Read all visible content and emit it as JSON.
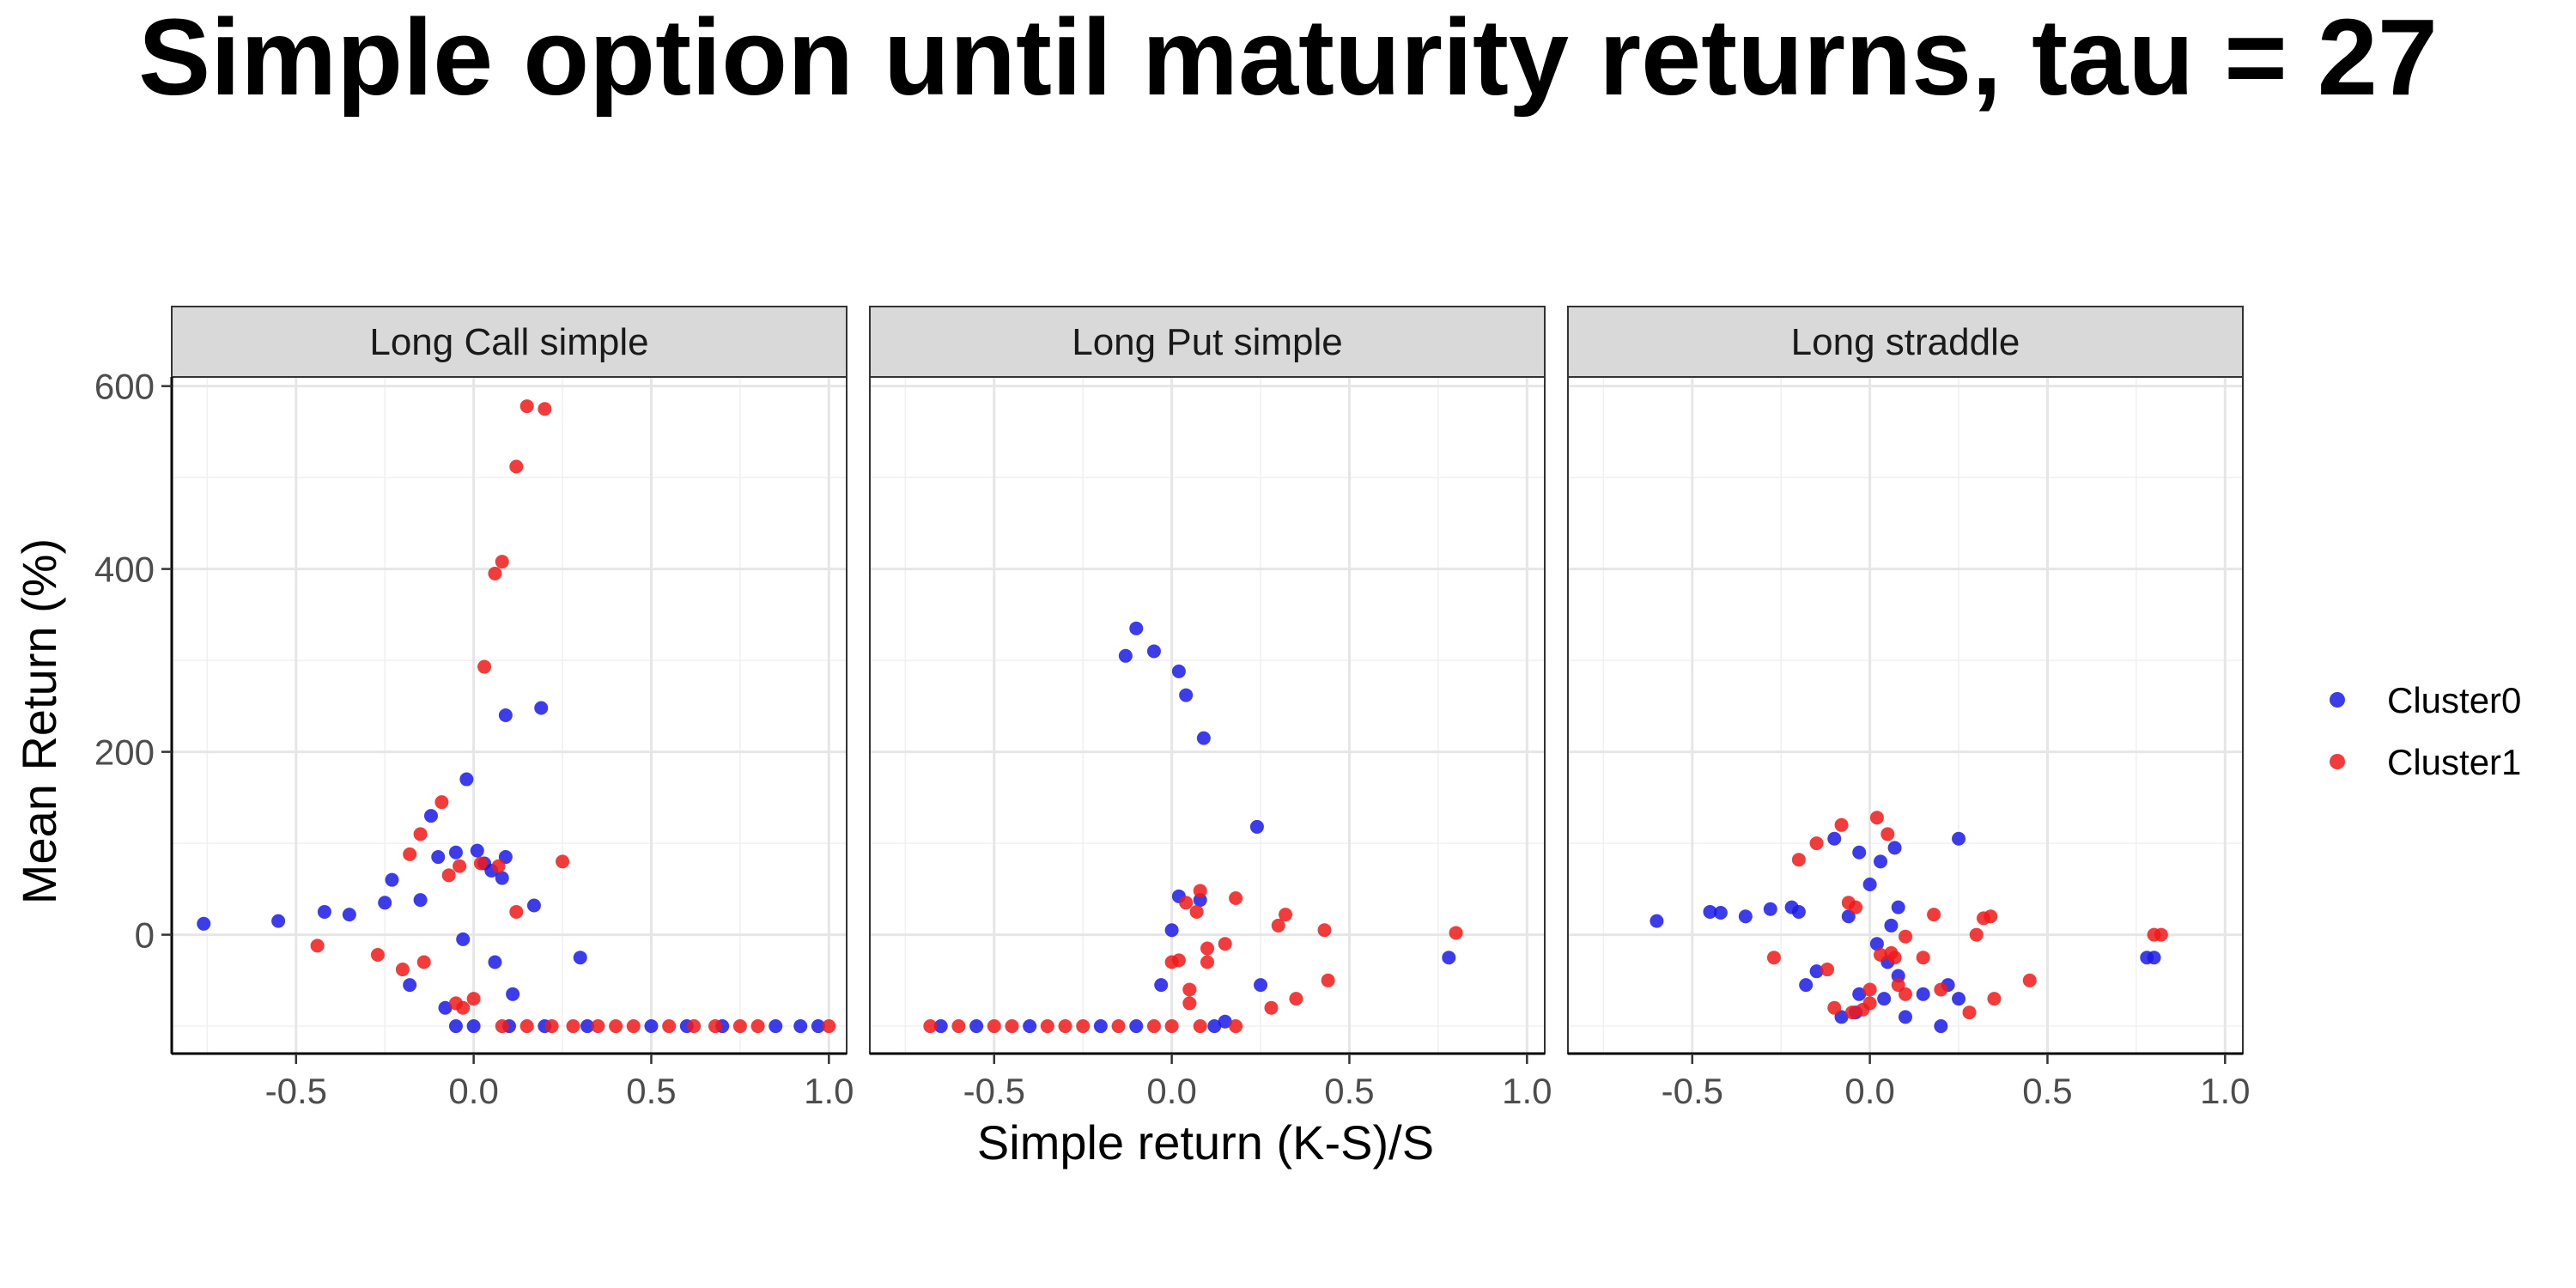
{
  "chart_data": {
    "type": "scatter",
    "title": "Simple option until maturity returns, tau = 27",
    "xlabel": "Simple return (K-S)/S",
    "ylabel": "Mean Return (%)",
    "xlim": [
      -0.85,
      1.05
    ],
    "ylim": [
      -130,
      610
    ],
    "x_ticks": [
      -0.5,
      0.0,
      0.5,
      1.0
    ],
    "x_tick_labels": [
      "-0.5",
      "0.0",
      "0.5",
      "1.0"
    ],
    "y_ticks": [
      0,
      200,
      400,
      600
    ],
    "y_tick_labels": [
      "0",
      "200",
      "400",
      "600"
    ],
    "grid": true,
    "legend_position": "right",
    "legend": [
      {
        "name": "Cluster0",
        "color": "#1a1ae6"
      },
      {
        "name": "Cluster1",
        "color": "#f01a1a"
      }
    ],
    "panels": [
      {
        "label": "Long Call simple",
        "series": [
          {
            "name": "Cluster0",
            "points": [
              [
                -0.76,
                12
              ],
              [
                -0.55,
                15
              ],
              [
                -0.42,
                25
              ],
              [
                -0.35,
                22
              ],
              [
                -0.25,
                35
              ],
              [
                -0.23,
                60
              ],
              [
                -0.15,
                38
              ],
              [
                -0.12,
                130
              ],
              [
                -0.1,
                85
              ],
              [
                -0.05,
                90
              ],
              [
                -0.03,
                -5
              ],
              [
                -0.02,
                170
              ],
              [
                0.01,
                92
              ],
              [
                0.03,
                78
              ],
              [
                0.05,
                70
              ],
              [
                0.06,
                -30
              ],
              [
                0.08,
                62
              ],
              [
                0.09,
                240
              ],
              [
                0.09,
                85
              ],
              [
                0.11,
                -65
              ],
              [
                0.17,
                32
              ],
              [
                0.19,
                248
              ],
              [
                0.3,
                -25
              ],
              [
                -0.08,
                -80
              ],
              [
                -0.18,
                -55
              ],
              [
                -0.05,
                -100
              ],
              [
                0.0,
                -100
              ],
              [
                0.1,
                -100
              ],
              [
                0.2,
                -100
              ],
              [
                0.32,
                -100
              ],
              [
                0.5,
                -100
              ],
              [
                0.6,
                -100
              ],
              [
                0.7,
                -100
              ],
              [
                0.85,
                -100
              ],
              [
                0.92,
                -100
              ],
              [
                0.97,
                -100
              ]
            ]
          },
          {
            "name": "Cluster1",
            "points": [
              [
                -0.44,
                -12
              ],
              [
                -0.27,
                -22
              ],
              [
                -0.2,
                -38
              ],
              [
                -0.18,
                88
              ],
              [
                -0.15,
                110
              ],
              [
                -0.14,
                -30
              ],
              [
                -0.09,
                145
              ],
              [
                -0.07,
                65
              ],
              [
                -0.04,
                75
              ],
              [
                -0.03,
                -80
              ],
              [
                0.0,
                -70
              ],
              [
                0.02,
                78
              ],
              [
                0.03,
                293
              ],
              [
                0.06,
                395
              ],
              [
                0.07,
                75
              ],
              [
                0.08,
                408
              ],
              [
                0.12,
                512
              ],
              [
                0.12,
                25
              ],
              [
                0.15,
                578
              ],
              [
                0.2,
                575
              ],
              [
                0.25,
                80
              ],
              [
                -0.05,
                -75
              ],
              [
                0.08,
                -100
              ],
              [
                0.15,
                -100
              ],
              [
                0.22,
                -100
              ],
              [
                0.28,
                -100
              ],
              [
                0.35,
                -100
              ],
              [
                0.4,
                -100
              ],
              [
                0.45,
                -100
              ],
              [
                0.55,
                -100
              ],
              [
                0.62,
                -100
              ],
              [
                0.68,
                -100
              ],
              [
                0.75,
                -100
              ],
              [
                0.8,
                -100
              ],
              [
                1.0,
                -100
              ]
            ]
          }
        ]
      },
      {
        "label": "Long Put simple",
        "series": [
          {
            "name": "Cluster0",
            "points": [
              [
                -0.65,
                -100
              ],
              [
                -0.55,
                -100
              ],
              [
                -0.4,
                -100
              ],
              [
                -0.2,
                -100
              ],
              [
                -0.1,
                -100
              ],
              [
                -0.13,
                305
              ],
              [
                -0.1,
                335
              ],
              [
                -0.05,
                310
              ],
              [
                0.02,
                288
              ],
              [
                0.04,
                262
              ],
              [
                0.09,
                215
              ],
              [
                -0.03,
                -55
              ],
              [
                0.0,
                5
              ],
              [
                0.02,
                42
              ],
              [
                0.08,
                38
              ],
              [
                0.12,
                -100
              ],
              [
                0.15,
                -95
              ],
              [
                0.24,
                118
              ],
              [
                0.25,
                -55
              ],
              [
                0.78,
                -25
              ]
            ]
          },
          {
            "name": "Cluster1",
            "points": [
              [
                -0.68,
                -100
              ],
              [
                -0.6,
                -100
              ],
              [
                -0.5,
                -100
              ],
              [
                -0.45,
                -100
              ],
              [
                -0.35,
                -100
              ],
              [
                -0.3,
                -100
              ],
              [
                -0.25,
                -100
              ],
              [
                -0.15,
                -100
              ],
              [
                -0.05,
                -100
              ],
              [
                0.0,
                -100
              ],
              [
                0.08,
                -100
              ],
              [
                0.18,
                -100
              ],
              [
                0.0,
                -30
              ],
              [
                0.02,
                -28
              ],
              [
                0.04,
                35
              ],
              [
                0.05,
                -75
              ],
              [
                0.05,
                -60
              ],
              [
                0.07,
                25
              ],
              [
                0.08,
                48
              ],
              [
                0.1,
                -15
              ],
              [
                0.1,
                -30
              ],
              [
                0.15,
                -10
              ],
              [
                0.18,
                40
              ],
              [
                0.28,
                -80
              ],
              [
                0.3,
                10
              ],
              [
                0.32,
                22
              ],
              [
                0.35,
                -70
              ],
              [
                0.43,
                5
              ],
              [
                0.44,
                -50
              ],
              [
                0.8,
                2
              ]
            ]
          }
        ]
      },
      {
        "label": "Long straddle",
        "series": [
          {
            "name": "Cluster0",
            "points": [
              [
                -0.6,
                15
              ],
              [
                -0.45,
                25
              ],
              [
                -0.42,
                24
              ],
              [
                -0.35,
                20
              ],
              [
                -0.28,
                28
              ],
              [
                -0.22,
                30
              ],
              [
                -0.2,
                25
              ],
              [
                -0.18,
                -55
              ],
              [
                -0.15,
                -40
              ],
              [
                -0.1,
                105
              ],
              [
                -0.08,
                -90
              ],
              [
                -0.03,
                90
              ],
              [
                -0.03,
                -65
              ],
              [
                0.0,
                55
              ],
              [
                0.02,
                -10
              ],
              [
                0.03,
                80
              ],
              [
                0.04,
                -70
              ],
              [
                0.05,
                -30
              ],
              [
                0.06,
                10
              ],
              [
                0.07,
                95
              ],
              [
                0.08,
                30
              ],
              [
                0.08,
                -45
              ],
              [
                0.1,
                -90
              ],
              [
                0.15,
                -65
              ],
              [
                0.2,
                -100
              ],
              [
                0.22,
                -55
              ],
              [
                0.25,
                105
              ],
              [
                0.25,
                -70
              ],
              [
                0.78,
                -25
              ],
              [
                0.8,
                -25
              ],
              [
                -0.06,
                20
              ],
              [
                -0.04,
                -85
              ]
            ]
          },
          {
            "name": "Cluster1",
            "points": [
              [
                -0.27,
                -25
              ],
              [
                -0.2,
                82
              ],
              [
                -0.15,
                100
              ],
              [
                -0.12,
                -38
              ],
              [
                -0.08,
                120
              ],
              [
                -0.06,
                35
              ],
              [
                -0.04,
                30
              ],
              [
                -0.05,
                -85
              ],
              [
                -0.02,
                -82
              ],
              [
                0.0,
                -75
              ],
              [
                0.02,
                128
              ],
              [
                0.03,
                -22
              ],
              [
                0.05,
                110
              ],
              [
                0.06,
                -20
              ],
              [
                0.07,
                -25
              ],
              [
                0.08,
                -55
              ],
              [
                0.1,
                -65
              ],
              [
                0.15,
                -25
              ],
              [
                0.18,
                22
              ],
              [
                0.2,
                -60
              ],
              [
                0.28,
                -85
              ],
              [
                0.3,
                0
              ],
              [
                0.32,
                18
              ],
              [
                0.34,
                20
              ],
              [
                0.35,
                -70
              ],
              [
                0.45,
                -50
              ],
              [
                0.8,
                0
              ],
              [
                0.82,
                0
              ],
              [
                0.0,
                -60
              ],
              [
                -0.1,
                -80
              ],
              [
                0.1,
                -2
              ]
            ]
          }
        ]
      }
    ]
  }
}
